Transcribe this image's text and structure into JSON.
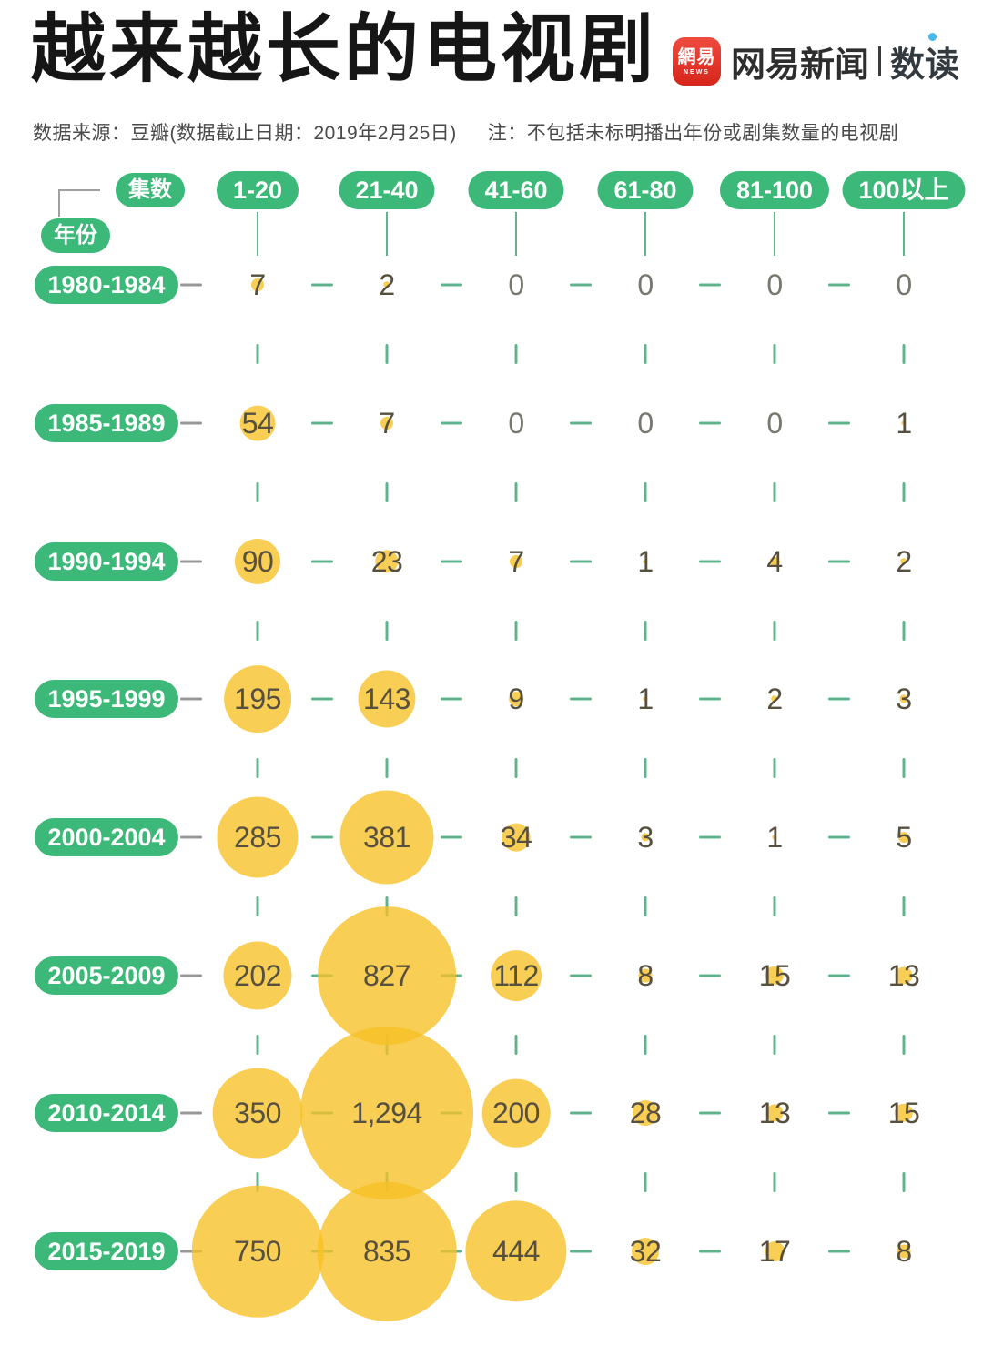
{
  "header": {
    "title": "越来越长的电视剧",
    "source_note": "数据来源：豆瓣(数据截止日期：2019年2月25日)",
    "note": "注：不包括未标明播出年份或剧集数量的电视剧",
    "logo": {
      "badge_text": "網易",
      "badge_sub": "NEWS",
      "brand": "网易新闻",
      "sub_brand": "数读"
    }
  },
  "chart_data": {
    "type": "bubble",
    "title": "越来越长的电视剧",
    "col_axis_label": "集数",
    "row_axis_label": "年份",
    "columns": [
      "1-20",
      "21-40",
      "41-60",
      "61-80",
      "81-100",
      "100以上"
    ],
    "rows": [
      "1980-1984",
      "1985-1989",
      "1990-1994",
      "1995-1999",
      "2000-2004",
      "2005-2009",
      "2010-2014",
      "2015-2019"
    ],
    "series": [
      {
        "name": "1980-1984",
        "values": [
          7,
          2,
          0,
          0,
          0,
          0
        ]
      },
      {
        "name": "1985-1989",
        "values": [
          54,
          7,
          0,
          0,
          0,
          1
        ]
      },
      {
        "name": "1990-1994",
        "values": [
          90,
          23,
          7,
          1,
          4,
          2
        ]
      },
      {
        "name": "1995-1999",
        "values": [
          195,
          143,
          9,
          1,
          2,
          3
        ]
      },
      {
        "name": "2000-2004",
        "values": [
          285,
          381,
          34,
          3,
          1,
          5
        ]
      },
      {
        "name": "2005-2009",
        "values": [
          202,
          827,
          112,
          8,
          15,
          13
        ]
      },
      {
        "name": "2010-2014",
        "values": [
          350,
          1294,
          200,
          28,
          13,
          15
        ]
      },
      {
        "name": "2015-2019",
        "values": [
          750,
          835,
          444,
          32,
          17,
          8
        ]
      }
    ],
    "size_encoding": "bubble area proportional to value",
    "legend_position": "none",
    "grid": "dashed green connectors between cells",
    "colors": {
      "pill_green": "#3cb878",
      "bubble_fill": "#f6c025",
      "bubble_opacity": 0.78,
      "value_text": "#57503e",
      "zero_text": "#78776f",
      "dash_green": "#5fb48d",
      "pill_dash_gray": "#979797",
      "bracket_gray": "#a0a0a0"
    }
  }
}
